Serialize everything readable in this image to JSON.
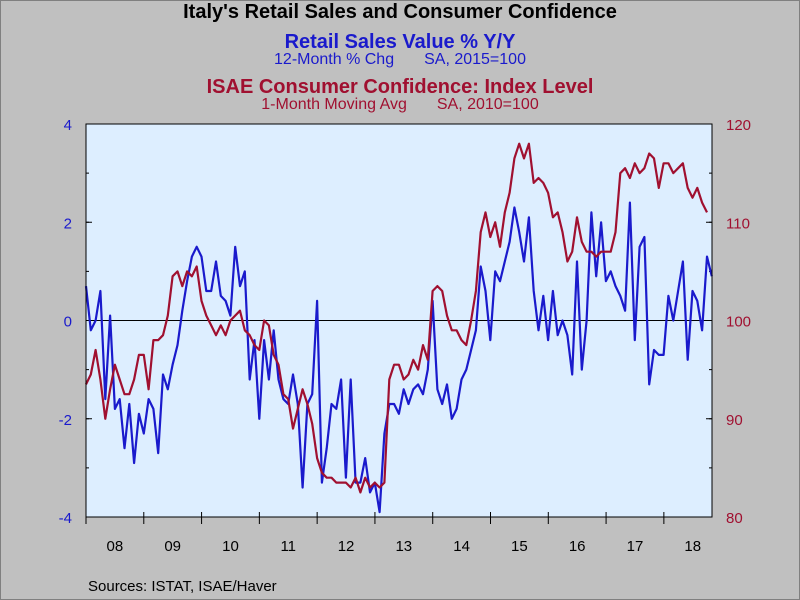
{
  "chart_data": {
    "type": "line",
    "title": "Italy's Retail Sales and Consumer Confidence",
    "source": "Sources:  ISTAT, ISAE/Haver",
    "x_ticks": [
      "08",
      "09",
      "10",
      "11",
      "12",
      "13",
      "14",
      "15",
      "16",
      "17",
      "18"
    ],
    "x_range": [
      2008.0,
      2018.833
    ],
    "left_axis": {
      "ylim": [
        -4,
        4
      ],
      "ticks": [
        "-4",
        "-2",
        "0",
        "2",
        "4"
      ],
      "color": "#1a1acc"
    },
    "right_axis": {
      "ylim": [
        80,
        120
      ],
      "ticks": [
        "80",
        "90",
        "100",
        "110",
        "120"
      ],
      "color": "#a01030"
    },
    "zero_line": 0,
    "series": [
      {
        "name": "Retail Sales Value % Y/Y",
        "subtitle": [
          "12-Month % Chg",
          "SA, 2015=100"
        ],
        "axis": "left",
        "color": "#1a1acc",
        "start": 2008.0,
        "step": 0.0833,
        "values": [
          0.7,
          -0.2,
          0.0,
          0.6,
          -1.6,
          0.1,
          -1.8,
          -1.6,
          -2.6,
          -1.7,
          -2.9,
          -1.9,
          -2.3,
          -1.6,
          -1.8,
          -2.7,
          -1.1,
          -1.4,
          -0.9,
          -0.5,
          0.2,
          0.8,
          1.3,
          1.5,
          1.3,
          0.6,
          0.6,
          1.2,
          0.5,
          0.4,
          0.1,
          1.5,
          0.7,
          1.0,
          -1.2,
          -0.4,
          -2.0,
          -0.4,
          -1.2,
          -0.2,
          -1.2,
          -1.6,
          -1.7,
          -1.1,
          -1.7,
          -3.4,
          -1.7,
          -1.5,
          0.4,
          -3.3,
          -2.6,
          -1.7,
          -1.8,
          -1.2,
          -3.2,
          -1.2,
          -3.3,
          -3.3,
          -2.8,
          -3.5,
          -3.3,
          -3.9,
          -2.3,
          -1.7,
          -1.7,
          -1.9,
          -1.4,
          -1.7,
          -1.4,
          -1.3,
          -1.5,
          -1.0,
          0.4,
          -1.4,
          -1.7,
          -1.3,
          -2.0,
          -1.8,
          -1.2,
          -1.0,
          -0.6,
          -0.2,
          1.1,
          0.6,
          -0.4,
          1.0,
          0.8,
          1.2,
          1.6,
          2.3,
          1.8,
          1.2,
          2.1,
          0.6,
          -0.2,
          0.5,
          -0.4,
          0.6,
          -0.3,
          0.0,
          -0.3,
          -1.1,
          1.2,
          -1.0,
          0.0,
          2.2,
          0.9,
          2.0,
          0.8,
          1.0,
          0.7,
          0.5,
          0.2,
          2.4,
          -0.4,
          1.5,
          1.7,
          -1.3,
          -0.6,
          -0.7,
          -0.7,
          0.5,
          0.0,
          0.6,
          1.2,
          -0.8,
          0.6,
          0.4,
          -0.2,
          1.3,
          0.9
        ]
      },
      {
        "name": "ISAE Consumer Confidence: Index Level",
        "subtitle": [
          "1-Month Moving Avg",
          "SA, 2010=100"
        ],
        "axis": "right",
        "color": "#a01030",
        "start": 2008.0,
        "step": 0.0833,
        "values": [
          93.5,
          94.5,
          97.0,
          94.0,
          90.0,
          93.0,
          95.5,
          94.0,
          92.5,
          92.5,
          94.0,
          96.5,
          96.5,
          93.0,
          98.0,
          98.0,
          98.5,
          100.5,
          104.5,
          105.0,
          103.5,
          105.0,
          104.5,
          105.5,
          102.0,
          100.5,
          99.5,
          98.5,
          99.5,
          98.5,
          100.0,
          100.5,
          101.0,
          99.0,
          98.5,
          97.5,
          97.0,
          100.0,
          99.5,
          96.5,
          95.5,
          92.5,
          92.0,
          89.0,
          91.0,
          93.0,
          91.5,
          89.5,
          86.0,
          84.5,
          84.0,
          84.0,
          83.5,
          83.5,
          83.5,
          83.0,
          84.0,
          82.5,
          84.0,
          83.0,
          83.5,
          83.0,
          83.5,
          94.0,
          95.5,
          95.5,
          94.0,
          94.5,
          96.0,
          95.0,
          97.5,
          96.0,
          103.0,
          103.5,
          103.0,
          100.5,
          99.0,
          99.0,
          98.0,
          97.5,
          100.0,
          103.0,
          109.0,
          111.0,
          108.5,
          110.0,
          107.5,
          111.0,
          113.0,
          116.5,
          118.0,
          116.5,
          118.0,
          114.0,
          114.5,
          114.0,
          113.0,
          110.5,
          111.0,
          109.0,
          106.0,
          107.0,
          110.5,
          108.0,
          107.0,
          107.0,
          106.5,
          107.0,
          107.0,
          107.0,
          109.0,
          115.0,
          115.5,
          114.5,
          116.0,
          115.0,
          115.5,
          117.0,
          116.5,
          113.5,
          116.0,
          116.0,
          115.0,
          115.5,
          116.0,
          113.5,
          112.5,
          113.5,
          112.0,
          111.0
        ]
      }
    ]
  }
}
